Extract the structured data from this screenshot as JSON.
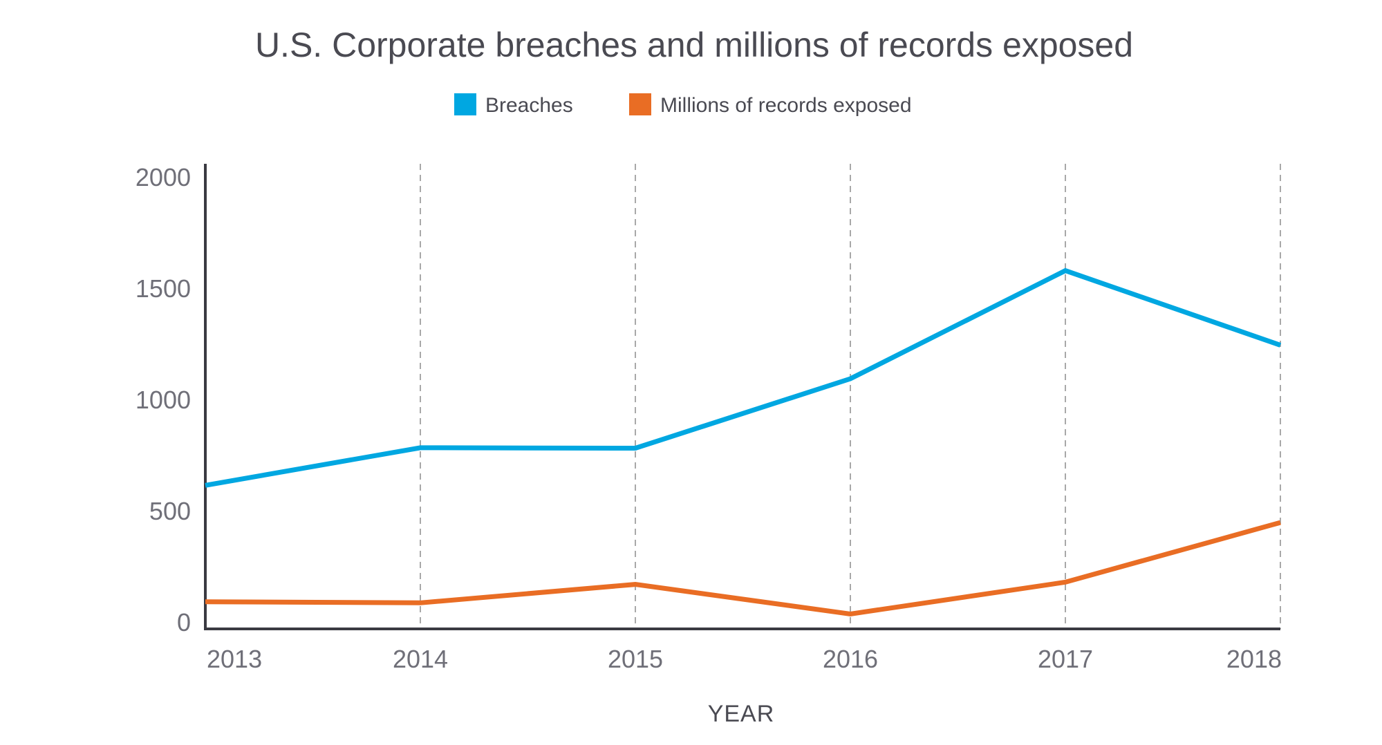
{
  "chart_data": {
    "type": "line",
    "title": "U.S. Corporate breaches and millions of records exposed",
    "xlabel": "YEAR",
    "ylabel": "",
    "x": [
      "2013",
      "2014",
      "2015",
      "2016",
      "2017",
      "2018"
    ],
    "yticks": [
      "0",
      "500",
      "1000",
      "1500",
      "2000"
    ],
    "ylim": [
      0,
      2000
    ],
    "grid": "vertical-dashed",
    "legend_position": "top-center",
    "series": [
      {
        "name": "Breaches",
        "color": "#00a7e1",
        "values": [
          614,
          783,
          781,
          1093,
          1579,
          1244
        ]
      },
      {
        "name": "Millions of records exposed",
        "color": "#e96d24",
        "values": [
          91,
          86,
          169,
          36,
          179,
          447
        ]
      }
    ]
  },
  "colors": {
    "axis": "#3a3a42",
    "grid": "#a8a8a8"
  }
}
